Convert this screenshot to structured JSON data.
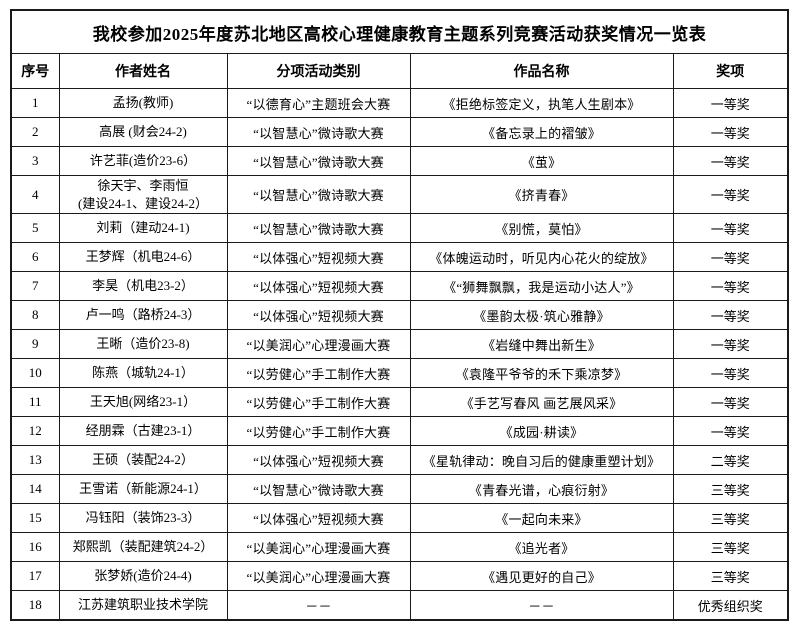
{
  "page": {
    "background": "#ffffff",
    "border_color": "#1a1a1a",
    "text_color": "#000000"
  },
  "table": {
    "title": "我校参加2025年度苏北地区高校心理健康教育主题系列竞赛活动获奖情况一览表",
    "columns": [
      "序号",
      "作者姓名",
      "分项活动类别",
      "作品名称",
      "奖项"
    ],
    "rows": [
      {
        "no": "1",
        "author": "孟扬(教师)",
        "category": "“以德育心”主题班会大赛",
        "work": "《拒绝标签定义，执笔人生剧本》",
        "award": "一等奖"
      },
      {
        "no": "2",
        "author": "高展 (财会24-2)",
        "category": "“以智慧心”微诗歌大赛",
        "work": "《备忘录上的褶皱》",
        "award": "一等奖"
      },
      {
        "no": "3",
        "author": "许艺菲(造价23-6）",
        "category": "“以智慧心”微诗歌大赛",
        "work": "《茧》",
        "award": "一等奖"
      },
      {
        "no": "4",
        "author": "徐天宇、李雨恒\n(建设24-1、建设24-2）",
        "category": "“以智慧心”微诗歌大赛",
        "work": "《挤青春》",
        "award": "一等奖"
      },
      {
        "no": "5",
        "author": "刘莉（建动24-1)",
        "category": "“以智慧心”微诗歌大赛",
        "work": "《别慌，莫怕》",
        "award": "一等奖"
      },
      {
        "no": "6",
        "author": "王梦辉（机电24-6）",
        "category": "“以体强心”短视频大赛",
        "work": "《体魄运动时，听见内心花火的绽放》",
        "award": "一等奖"
      },
      {
        "no": "7",
        "author": "李昊（机电23-2）",
        "category": "“以体强心”短视频大赛",
        "work": "《“狮舞飘飘，我是运动小达人”》",
        "award": "一等奖"
      },
      {
        "no": "8",
        "author": "卢一鸣（路桥24-3）",
        "category": "“以体强心”短视频大赛",
        "work": "《墨韵太极·筑心雅静》",
        "award": "一等奖"
      },
      {
        "no": "9",
        "author": "王晰（造价23-8)",
        "category": "“以美润心”心理漫画大赛",
        "work": "《岩缝中舞出新生》",
        "award": "一等奖"
      },
      {
        "no": "10",
        "author": "陈燕（城轨24-1）",
        "category": "“以劳健心”手工制作大赛",
        "work": "《袁隆平爷爷的禾下乘凉梦》",
        "award": "一等奖"
      },
      {
        "no": "11",
        "author": "王天旭(网络23-1）",
        "category": "“以劳健心”手工制作大赛",
        "work": "《手艺写春风 画艺展风采》",
        "award": "一等奖"
      },
      {
        "no": "12",
        "author": "经朋霖（古建23-1）",
        "category": "“以劳健心”手工制作大赛",
        "work": "《成园·耕读》",
        "award": "一等奖"
      },
      {
        "no": "13",
        "author": "王硕（装配24-2）",
        "category": "“以体强心”短视频大赛",
        "work": "《星轨律动：晚自习后的健康重塑计划》",
        "award": "二等奖"
      },
      {
        "no": "14",
        "author": "王雪诺（新能源24-1）",
        "category": "“以智慧心”微诗歌大赛",
        "work": "《青春光谱，心痕衍射》",
        "award": "三等奖"
      },
      {
        "no": "15",
        "author": "冯钰阳（装饰23-3）",
        "category": "“以体强心”短视频大赛",
        "work": "《一起向未来》",
        "award": "三等奖"
      },
      {
        "no": "16",
        "author": "郑熙凯（装配建筑24-2）",
        "category": "“以美润心”心理漫画大赛",
        "work": "《追光者》",
        "award": "三等奖"
      },
      {
        "no": "17",
        "author": "张梦娇(造价24-4)",
        "category": "“以美润心”心理漫画大赛",
        "work": "《遇见更好的自己》",
        "award": "三等奖"
      },
      {
        "no": "18",
        "author": "江苏建筑职业技术学院",
        "category": "－－",
        "work": "－－",
        "award": "优秀组织奖"
      }
    ]
  }
}
